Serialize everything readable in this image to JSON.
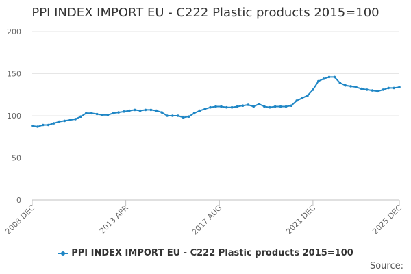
{
  "chart_data": {
    "type": "line",
    "title": "PPI INDEX IMPORT EU - C222 Plastic products 2015=100",
    "xlabel": "",
    "ylabel": "",
    "ylim": [
      0,
      200
    ],
    "y_ticks": [
      "0",
      "50",
      "100",
      "150",
      "200"
    ],
    "x_ticks": [
      "2008 DEC",
      "2013 APR",
      "2017 AUG",
      "2021 DEC",
      "2025 DEC"
    ],
    "grid": "horizontal",
    "legend_position": "bottom",
    "series": [
      {
        "name": "PPI INDEX IMPORT EU - C222 Plastic products 2015=100",
        "color": "#1f86c5",
        "x": [
          "2008-12",
          "2009-03",
          "2009-06",
          "2009-09",
          "2009-12",
          "2010-03",
          "2010-06",
          "2010-09",
          "2010-12",
          "2011-03",
          "2011-06",
          "2011-09",
          "2011-12",
          "2012-03",
          "2012-06",
          "2012-09",
          "2012-12",
          "2013-03",
          "2013-06",
          "2013-09",
          "2013-12",
          "2014-03",
          "2014-06",
          "2014-09",
          "2014-12",
          "2015-03",
          "2015-06",
          "2015-09",
          "2015-12",
          "2016-03",
          "2016-06",
          "2016-09",
          "2016-12",
          "2017-03",
          "2017-06",
          "2017-09",
          "2017-12",
          "2018-03",
          "2018-06",
          "2018-09",
          "2018-12",
          "2019-03",
          "2019-06",
          "2019-09",
          "2019-12",
          "2020-03",
          "2020-06",
          "2020-09",
          "2020-12",
          "2021-03",
          "2021-06",
          "2021-09",
          "2021-12",
          "2022-03",
          "2022-06",
          "2022-09",
          "2022-12",
          "2023-03",
          "2023-06",
          "2023-09",
          "2023-12",
          "2024-03",
          "2024-06",
          "2024-09",
          "2024-12",
          "2025-03",
          "2025-06",
          "2025-09",
          "2025-12"
        ],
        "values": [
          88,
          87,
          89,
          89,
          91,
          93,
          94,
          95,
          96,
          99,
          103,
          103,
          102,
          101,
          101,
          103,
          104,
          105,
          106,
          107,
          106,
          107,
          107,
          106,
          104,
          100,
          100,
          100,
          98,
          99,
          103,
          106,
          108,
          110,
          111,
          111,
          110,
          110,
          111,
          112,
          113,
          111,
          114,
          111,
          110,
          111,
          111,
          111,
          112,
          118,
          121,
          124,
          131,
          141,
          144,
          146,
          146,
          139,
          136,
          135,
          134,
          132,
          131,
          130,
          129,
          131,
          133,
          133,
          134
        ]
      }
    ]
  },
  "source_label": "Source:"
}
